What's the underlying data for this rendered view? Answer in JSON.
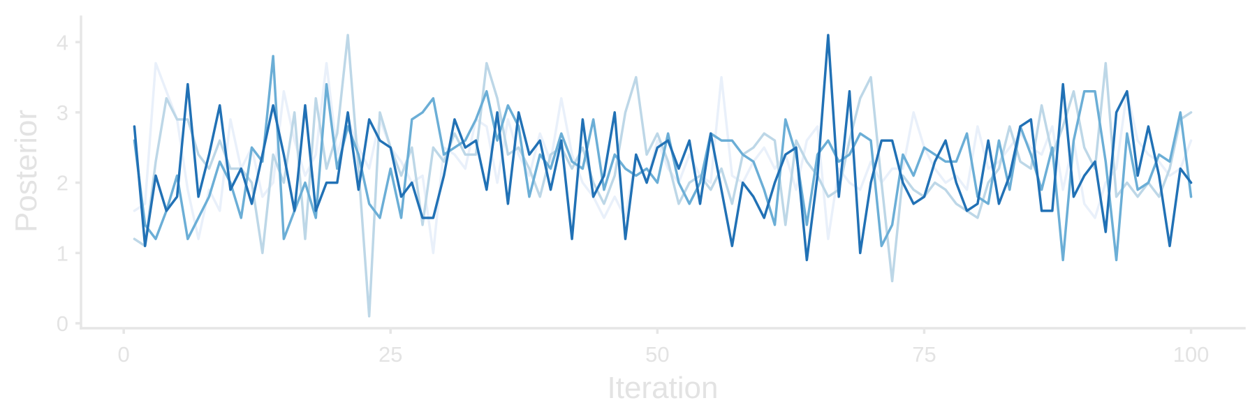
{
  "chart_data": {
    "type": "line",
    "xlabel": "Iteration",
    "ylabel": "Posterior",
    "xlim": [
      -4,
      105
    ],
    "ylim": [
      -0.07,
      4.4
    ],
    "xticks": [
      0,
      25,
      50,
      75,
      100
    ],
    "yticks": [
      0,
      1,
      2,
      3,
      4
    ],
    "grid": false,
    "legend": "none",
    "series": [
      {
        "color": "#e9f0fa",
        "values": [
          1.6,
          1.7,
          3.7,
          3.3,
          2.9,
          1.9,
          1.2,
          1.9,
          1.6,
          2.9,
          2.2,
          2.5,
          1.8,
          2.0,
          3.3,
          2.6,
          2.1,
          2.4,
          3.7,
          2.4,
          2.9,
          2.5,
          2.2,
          2.9,
          2.5,
          2.3,
          2.0,
          2.1,
          1.0,
          2.5,
          2.4,
          2.2,
          2.9,
          2.8,
          2.0,
          2.9,
          2.4,
          2.1,
          2.7,
          2.3,
          3.2,
          2.4,
          2.0,
          1.8,
          1.5,
          1.8,
          1.5,
          2.4,
          2.0,
          2.6,
          2.2,
          2.0,
          2.4,
          2.1,
          2.0,
          3.5,
          2.1,
          2.0,
          2.3,
          2.5,
          2.2,
          2.4,
          1.9,
          2.6,
          2.8,
          1.2,
          2.2,
          2.0,
          1.9,
          2.3,
          2.0,
          2.2,
          2.2,
          3.0,
          2.5,
          2.2,
          2.0,
          2.1,
          1.9,
          2.8,
          2.2,
          2.3,
          2.5,
          2.7,
          2.5,
          2.4,
          2.8,
          1.9,
          2.6,
          1.7,
          1.5,
          2.0,
          2.2,
          3.3,
          2.6,
          2.4,
          2.3,
          2.1,
          2.2,
          2.6
        ]
      },
      {
        "color": "#bdd7e7",
        "values": [
          1.2,
          1.1,
          2.3,
          3.2,
          2.9,
          2.9,
          2.4,
          2.2,
          2.6,
          2.2,
          2.2,
          2.0,
          1.0,
          2.4,
          2.0,
          3.0,
          1.2,
          3.2,
          2.2,
          2.7,
          4.1,
          2.2,
          0.1,
          3.0,
          2.5,
          2.1,
          2.5,
          1.4,
          2.5,
          2.3,
          2.7,
          2.4,
          2.4,
          3.7,
          3.2,
          2.4,
          2.5,
          2.2,
          1.8,
          2.4,
          2.5,
          2.2,
          2.5,
          2.0,
          1.7,
          2.1,
          3.0,
          3.5,
          2.4,
          2.7,
          2.3,
          1.7,
          2.0,
          2.1,
          1.9,
          2.2,
          1.7,
          2.4,
          2.5,
          2.7,
          2.6,
          1.4,
          2.6,
          2.3,
          2.1,
          1.8,
          1.9,
          2.6,
          3.2,
          3.5,
          2.0,
          0.6,
          2.1,
          1.9,
          1.8,
          2.0,
          1.9,
          1.7,
          1.6,
          1.5,
          2.0,
          2.2,
          2.8,
          2.3,
          2.2,
          3.1,
          2.4,
          2.8,
          3.3,
          2.5,
          2.2,
          3.7,
          1.8,
          2.0,
          1.8,
          2.0,
          1.8,
          2.2,
          2.9,
          3.0
        ]
      },
      {
        "color": "#6baed6",
        "values": [
          2.6,
          1.4,
          1.2,
          1.6,
          2.1,
          1.2,
          1.5,
          1.8,
          2.3,
          2.0,
          1.5,
          2.5,
          2.3,
          3.8,
          1.2,
          1.6,
          2.0,
          1.5,
          3.4,
          2.2,
          2.8,
          2.4,
          1.7,
          1.5,
          2.2,
          1.5,
          2.9,
          3.0,
          3.2,
          2.4,
          2.5,
          2.6,
          2.9,
          3.3,
          2.6,
          3.1,
          2.8,
          1.8,
          2.4,
          2.2,
          2.7,
          2.3,
          2.2,
          2.9,
          1.9,
          2.4,
          2.2,
          2.1,
          2.2,
          2.0,
          2.7,
          2.0,
          1.7,
          2.0,
          2.7,
          2.6,
          2.6,
          2.4,
          2.3,
          1.9,
          1.4,
          2.9,
          2.4,
          1.4,
          2.4,
          2.6,
          2.3,
          2.4,
          2.7,
          2.6,
          1.1,
          1.4,
          2.4,
          2.1,
          2.5,
          2.4,
          2.3,
          2.3,
          2.7,
          1.8,
          1.7,
          2.6,
          1.9,
          2.8,
          2.4,
          1.9,
          2.5,
          0.9,
          2.6,
          3.3,
          3.3,
          2.3,
          0.9,
          2.7,
          1.9,
          2.0,
          2.4,
          2.3,
          3.0,
          1.8
        ]
      },
      {
        "color": "#2171b5",
        "values": [
          2.8,
          1.1,
          2.1,
          1.6,
          1.8,
          3.4,
          1.8,
          2.4,
          3.1,
          1.9,
          2.2,
          1.7,
          2.4,
          3.1,
          2.4,
          1.6,
          3.1,
          1.6,
          2.0,
          2.0,
          3.0,
          1.9,
          2.9,
          2.6,
          2.5,
          1.8,
          2.0,
          1.5,
          1.5,
          2.1,
          2.9,
          2.5,
          2.6,
          1.9,
          3.0,
          1.7,
          3.0,
          2.4,
          2.6,
          1.9,
          2.6,
          1.2,
          2.9,
          1.8,
          2.1,
          3.0,
          1.2,
          2.4,
          2.0,
          2.5,
          2.6,
          2.2,
          2.6,
          1.7,
          2.7,
          1.9,
          1.1,
          2.0,
          1.8,
          1.5,
          2.0,
          2.4,
          2.5,
          0.9,
          2.1,
          4.1,
          1.8,
          3.3,
          1.0,
          2.0,
          2.6,
          2.6,
          2.0,
          1.7,
          1.8,
          2.3,
          2.6,
          2.0,
          1.6,
          1.7,
          2.6,
          1.7,
          2.1,
          2.8,
          2.9,
          1.6,
          1.6,
          3.4,
          1.8,
          2.1,
          2.3,
          1.3,
          3.0,
          3.3,
          2.1,
          2.8,
          2.1,
          1.1,
          2.2,
          2.0
        ]
      }
    ]
  }
}
